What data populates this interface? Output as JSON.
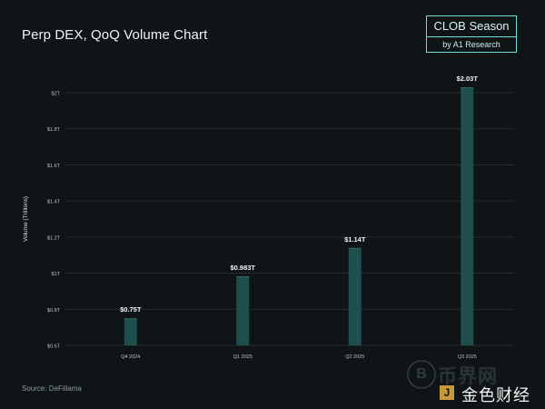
{
  "chart_data": {
    "type": "bar",
    "title": "Perp DEX, QoQ Volume Chart",
    "ylabel": "Volume (Trillions)",
    "xlabel": "",
    "categories": [
      "Q4 2024",
      "Q1 2025",
      "Q2 2025",
      "Q3 2025"
    ],
    "values": [
      0.75,
      0.983,
      1.14,
      2.03
    ],
    "data_labels": [
      "$0.75T",
      "$0.983T",
      "$1.14T",
      "$2.03T"
    ],
    "ylim": [
      0.6,
      2.0
    ],
    "yticks": [
      0.6,
      0.8,
      1.0,
      1.2,
      1.4,
      1.6,
      1.8,
      2.0
    ],
    "ytick_labels": [
      "$0.6T",
      "$0.8T",
      "$1T",
      "$1.2T",
      "$1.4T",
      "$1.6T",
      "$1.8T",
      "$2T"
    ],
    "grid": true,
    "colors": {
      "bar": "#1f4f4c",
      "bar_top": "#2f6b66",
      "grid": "#2a3334",
      "tick": "#b9c4c4"
    }
  },
  "badge": {
    "title": "CLOB Season",
    "subtitle": "by A1 Research"
  },
  "source": "Source: DeFillama",
  "watermark": {
    "coin": "B",
    "line1": "币界网",
    "mark": "J",
    "line2": "金色财经"
  }
}
